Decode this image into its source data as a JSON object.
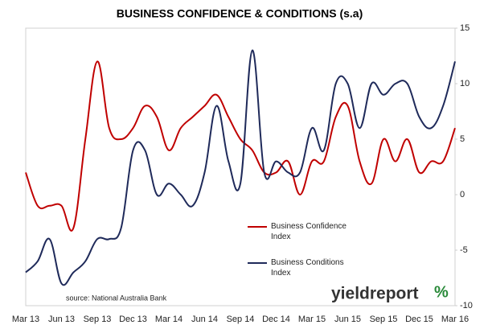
{
  "chart_data": {
    "type": "line",
    "title": "BUSINESS CONFIDENCE & CONDITIONS (s.a)",
    "source": "source: National Australia Bank",
    "logo": "yieldreport",
    "logo_mark": "%",
    "categories": [
      "Mar 13",
      null,
      null,
      "Jun 13",
      null,
      null,
      "Sep 13",
      null,
      null,
      "Dec 13",
      null,
      null,
      "Mar 14",
      null,
      null,
      "Jun 14",
      null,
      null,
      "Sep 14",
      null,
      null,
      "Dec 14",
      null,
      null,
      "Mar 15",
      null,
      null,
      "Jun 15",
      null,
      null,
      "Sep 15",
      null,
      null,
      "Dec 15",
      null,
      null,
      "Mar 16"
    ],
    "series": [
      {
        "name": "Business Confidence Index",
        "color": "#c00000",
        "values": [
          2,
          -1,
          -1,
          -1,
          -3,
          5,
          12,
          6,
          5,
          6,
          8,
          7,
          4,
          6,
          7,
          8,
          9,
          7,
          5,
          4,
          2,
          2,
          3,
          0,
          3,
          3,
          7,
          8,
          3,
          1,
          5,
          3,
          5,
          2,
          3,
          3,
          6
        ]
      },
      {
        "name": "Business Conditions Index",
        "color": "#1f2a5a",
        "values": [
          -7,
          -6,
          -4,
          -8,
          -7,
          -6,
          -4,
          -4,
          -3,
          4,
          4,
          0,
          1,
          0,
          -1,
          2,
          8,
          3,
          1,
          13,
          2,
          3,
          2,
          2,
          6,
          4,
          10,
          10,
          6,
          10,
          9,
          10,
          10,
          7,
          6,
          8,
          12
        ]
      }
    ],
    "ylim": [
      -10,
      15
    ],
    "yticks": [
      -10,
      -5,
      0,
      5,
      10,
      15
    ],
    "grid": false,
    "legend": "bottom-right"
  }
}
